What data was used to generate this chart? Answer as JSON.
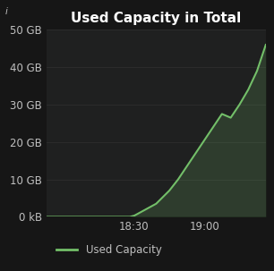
{
  "title": "Used Capacity in Total",
  "background_color": "#161616",
  "plot_bg_color": "#1f2020",
  "grid_color": "#2e2e2e",
  "line_color": "#73bf69",
  "text_color": "#c0c0c0",
  "legend_label": "Used Capacity",
  "x_values": [
    0,
    20,
    38,
    40,
    50,
    56,
    60,
    64,
    68,
    72,
    76,
    80,
    84,
    88,
    92,
    96,
    100
  ],
  "y_values_gb": [
    0,
    0,
    0,
    0.3,
    3.5,
    7,
    10,
    13.5,
    17,
    20.5,
    24,
    27.5,
    26.5,
    30,
    34,
    39,
    46
  ],
  "x_tick_positions": [
    40,
    72
  ],
  "x_tick_labels": [
    "18:30",
    "19:00"
  ],
  "y_tick_labels": [
    "0 kB",
    "10 GB",
    "20 GB",
    "30 GB",
    "40 GB",
    "50 GB"
  ],
  "y_tick_values": [
    0,
    10,
    20,
    30,
    40,
    50
  ],
  "ylim": [
    0,
    50
  ],
  "xlim": [
    0,
    100
  ],
  "title_fontsize": 11,
  "tick_fontsize": 8.5,
  "legend_fontsize": 8.5,
  "line_width": 1.5
}
